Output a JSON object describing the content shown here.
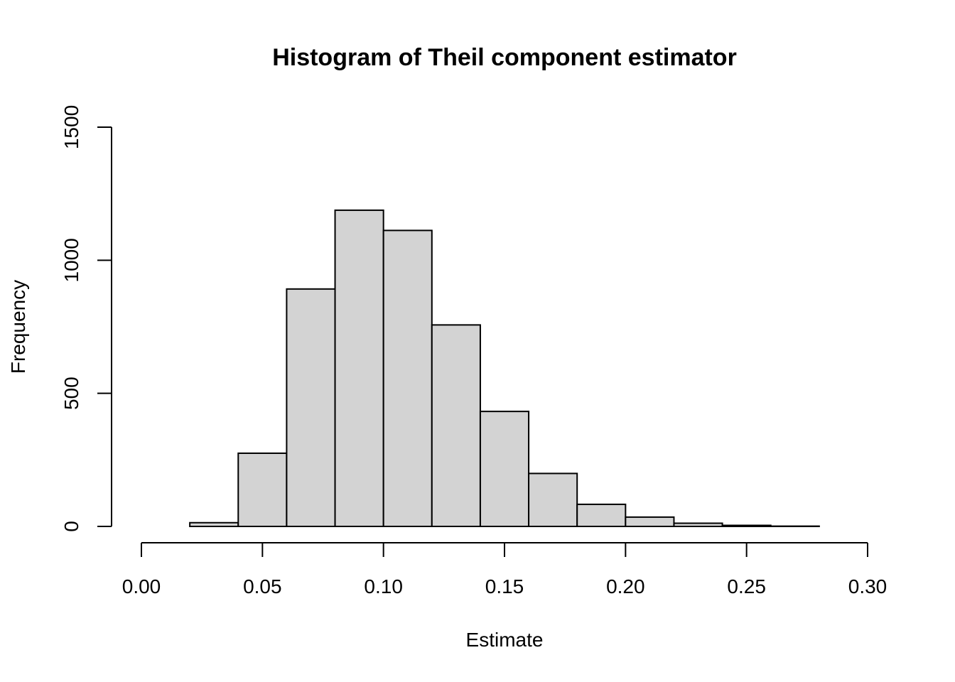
{
  "chart_data": {
    "type": "bar",
    "title": "Histogram of Theil component estimator",
    "xlabel": "Estimate",
    "ylabel": "Frequency",
    "x_ticks": [
      "0.00",
      "0.05",
      "0.10",
      "0.15",
      "0.20",
      "0.25",
      "0.30"
    ],
    "y_ticks": [
      "0",
      "500",
      "1000",
      "1500"
    ],
    "xlim": [
      0.0,
      0.3
    ],
    "ylim": [
      0,
      1500
    ],
    "bin_edges": [
      0.02,
      0.04,
      0.06,
      0.08,
      0.1,
      0.12,
      0.14,
      0.16,
      0.18,
      0.2,
      0.22,
      0.24,
      0.26,
      0.28
    ],
    "values": [
      14,
      275,
      892,
      1188,
      1112,
      757,
      432,
      199,
      83,
      35,
      12,
      4,
      1
    ],
    "bar_color": "#d3d3d3",
    "grid": false,
    "legend": "none"
  }
}
